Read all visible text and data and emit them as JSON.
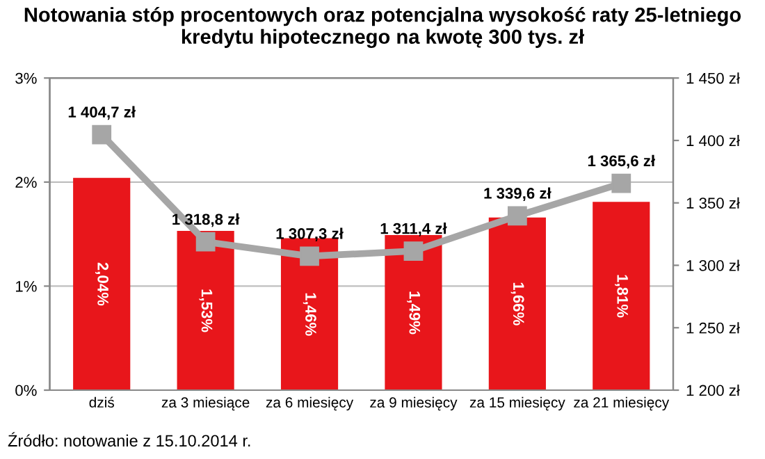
{
  "chart_data": {
    "type": "bar",
    "title": "Notowania stóp procentowych oraz potencjalna wysokość raty 25-letniego kredytu hipotecznego na kwotę 300 tys. zł",
    "categories": [
      "dziś",
      "za 3 miesiące",
      "za 6 miesięcy",
      "za 9 miesięcy",
      "za 15 miesięcy",
      "za 21 miesięcy"
    ],
    "series": [
      {
        "color": "#e8161b",
        "values": [
          2.04,
          1.53,
          1.46,
          1.49,
          1.66,
          1.81
        ],
        "value_labels": [
          "2,04%",
          "1,53%",
          "1,46%",
          "1,49%",
          "1,66%",
          "1,81%"
        ]
      },
      {
        "type": "line",
        "axis": "y2",
        "color": "#a6a6a6",
        "marker": "square",
        "values": [
          1404.7,
          1318.8,
          1307.3,
          1311.4,
          1339.6,
          1365.6
        ],
        "value_labels": [
          "1 404,7 zł",
          "1 318,8 zł",
          "1 307,3 zł",
          "1 311,4 zł",
          "1 339,6 zł",
          "1 365,6 zł"
        ]
      }
    ],
    "ylim": [
      0,
      3
    ],
    "yticks": [
      {
        "value": 0,
        "label": "0%"
      },
      {
        "value": 1,
        "label": "1%"
      },
      {
        "value": 2,
        "label": "2%"
      },
      {
        "value": 3,
        "label": "3%"
      }
    ],
    "y2lim": [
      1200,
      1450
    ],
    "y2ticks": [
      {
        "value": 1200,
        "label": "1 200 zł"
      },
      {
        "value": 1250,
        "label": "1 250 zł"
      },
      {
        "value": 1300,
        "label": "1 300 zł"
      },
      {
        "value": 1350,
        "label": "1 350 zł"
      },
      {
        "value": 1400,
        "label": "1 400 zł"
      },
      {
        "value": 1450,
        "label": "1 450 zł"
      }
    ],
    "grid": "y",
    "annotations": [
      "Źródło: notowanie z 15.10.2014 r."
    ]
  }
}
